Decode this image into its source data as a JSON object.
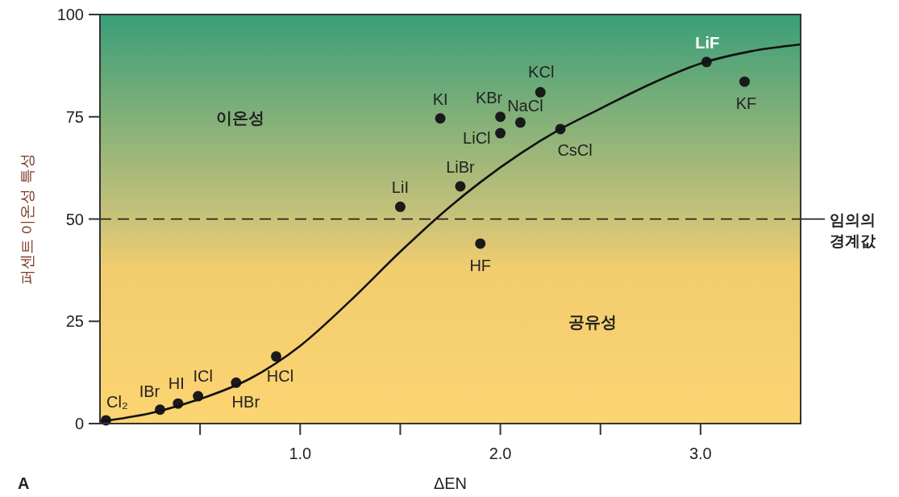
{
  "chart_data": {
    "type": "scatter",
    "xlabel": "ΔEN",
    "ylabel": "퍼센트 이온성 특성",
    "xlim": [
      0,
      3.5
    ],
    "ylim": [
      0,
      100
    ],
    "xticks": [
      {
        "value": 0.5,
        "label": null
      },
      {
        "value": 1,
        "label": "1.0"
      },
      {
        "value": 1.5,
        "label": null
      },
      {
        "value": 2,
        "label": "2.0"
      },
      {
        "value": 2.5,
        "label": null
      },
      {
        "value": 3,
        "label": "3.0"
      }
    ],
    "yticks": [
      0,
      25,
      50,
      75,
      100
    ],
    "grid": false,
    "marker": "circle",
    "series": [
      {
        "color": "#1a1a1a",
        "x": [
          0.03,
          0.3,
          0.39,
          0.49,
          0.68,
          0.88,
          1.5,
          1.8,
          1.9,
          1.7,
          2.0,
          2.0,
          2.1,
          2.2,
          2.3,
          3.03,
          3.22
        ],
        "values": [
          0.8,
          3.4,
          4.9,
          6.7,
          10,
          16.4,
          53,
          58,
          44,
          74.6,
          75,
          71,
          73.6,
          81,
          72,
          88.4,
          83.6
        ]
      },
      {
        "type": "line",
        "color": "#111111",
        "marker": "none",
        "line_style": "solid",
        "x": [
          0,
          0.25,
          0.5,
          0.75,
          1.0,
          1.25,
          1.5,
          1.7,
          1.9,
          2.1,
          2.3,
          2.5,
          2.75,
          3.0,
          3.25,
          3.5
        ],
        "values": [
          0.5,
          2.5,
          6,
          11,
          19,
          30,
          42,
          51,
          59,
          66,
          72,
          77,
          83,
          88,
          91,
          92.7
        ]
      }
    ],
    "ref_lines": [
      {
        "axis": "y",
        "value": 50,
        "label": "임의의 경계값",
        "color": "#111111",
        "line_style": "dashed"
      }
    ],
    "annotations": [
      {
        "text": "Cl₂",
        "x": 0.03,
        "y": 0.8
      },
      {
        "text": "IBr",
        "x": 0.3,
        "y": 3.4
      },
      {
        "text": "HI",
        "x": 0.39,
        "y": 4.9
      },
      {
        "text": "ICl",
        "x": 0.49,
        "y": 6.7
      },
      {
        "text": "HBr",
        "x": 0.68,
        "y": 10
      },
      {
        "text": "HCl",
        "x": 0.88,
        "y": 16.4
      },
      {
        "text": "LiI",
        "x": 1.5,
        "y": 53
      },
      {
        "text": "LiBr",
        "x": 1.8,
        "y": 58
      },
      {
        "text": "HF",
        "x": 1.9,
        "y": 44
      },
      {
        "text": "KI",
        "x": 1.7,
        "y": 74.6
      },
      {
        "text": "KBr",
        "x": 2.0,
        "y": 75
      },
      {
        "text": "LiCl",
        "x": 2.0,
        "y": 71
      },
      {
        "text": "NaCl",
        "x": 2.1,
        "y": 73.6
      },
      {
        "text": "KCl",
        "x": 2.2,
        "y": 81
      },
      {
        "text": "CsCl",
        "x": 2.3,
        "y": 72
      },
      {
        "text": "LiF",
        "x": 3.03,
        "y": 88.4
      },
      {
        "text": "KF",
        "x": 3.22,
        "y": 83.6
      },
      "이온성",
      "공유성",
      "A"
    ]
  }
}
